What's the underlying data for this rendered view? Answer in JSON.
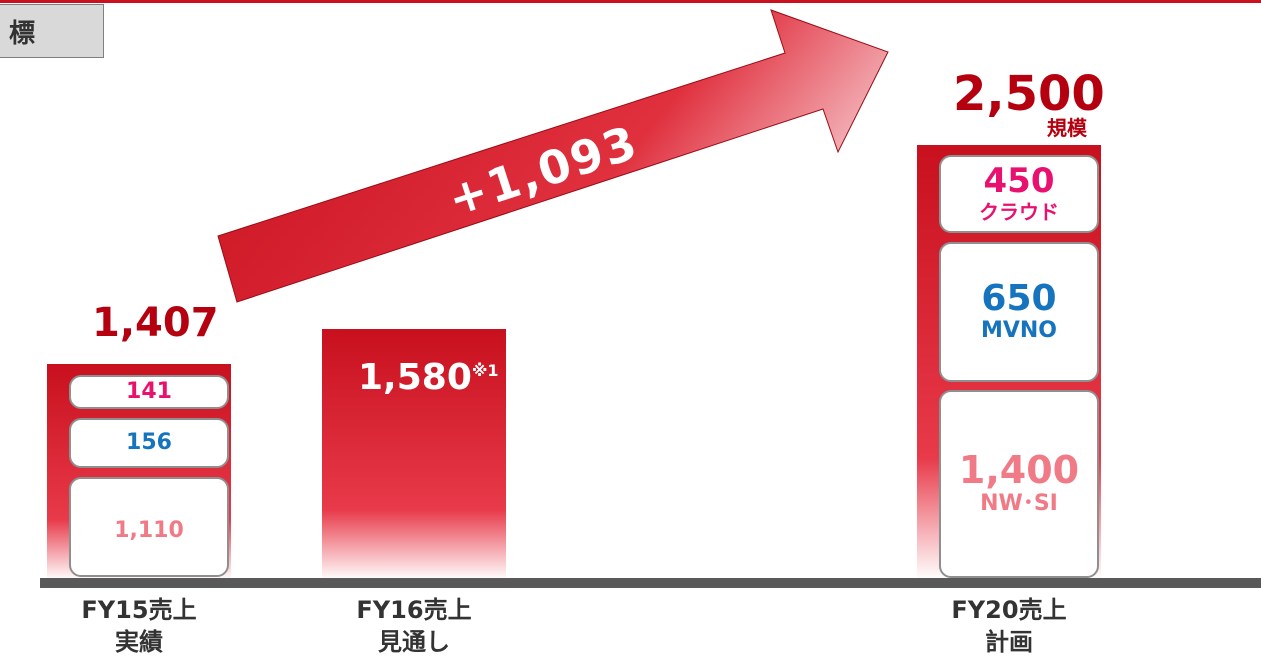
{
  "header": {
    "title_fragment": "標"
  },
  "chart_data": {
    "type": "bar",
    "stacked": true,
    "categories": [
      {
        "name": "FY15売上",
        "sub": "実績"
      },
      {
        "name": "FY16売上",
        "sub": "見通し"
      },
      {
        "name": "FY20売上",
        "sub": "計画"
      }
    ],
    "totals": [
      "1,407",
      "1,580",
      "2,500"
    ],
    "total_note": {
      "fy16_marker": "※1",
      "fy20_suffix": "規模"
    },
    "stacks": {
      "fy15": [
        {
          "value": 141,
          "label": "141"
        },
        {
          "value": 156,
          "label": "156"
        },
        {
          "value": 1110,
          "label": "1,110"
        }
      ],
      "fy20": [
        {
          "value": 450,
          "label": "450",
          "category": "クラウド"
        },
        {
          "value": 650,
          "label": "650",
          "category": "MVNO"
        },
        {
          "value": 1400,
          "label": "1,400",
          "category": "NW･SI"
        }
      ]
    },
    "arrow_label": "+1,093",
    "colors": {
      "accent": "#c8101e",
      "cloud": "#e8116f",
      "mvno": "#1574bd",
      "nw_si": "#f07a86",
      "total": "#b4000f"
    }
  }
}
